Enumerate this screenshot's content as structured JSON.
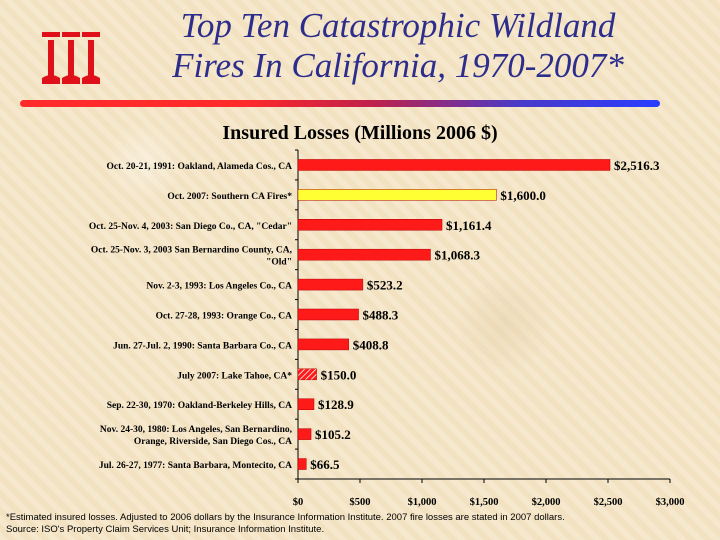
{
  "header": {
    "title_line1": "Top Ten Catastrophic Wildland",
    "title_line2": "Fires In California, 1970-2007*"
  },
  "chart_data": {
    "type": "bar",
    "orientation": "horizontal",
    "title": "Insured Losses (Millions 2006 $)",
    "categories": [
      "Oct. 20-21, 1991: Oakland, Alameda Cos., CA",
      "Oct. 2007: Southern CA Fires*",
      "Oct. 25-Nov. 4, 2003: San Diego Co., CA, \"Cedar\"",
      "Oct. 25-Nov. 3, 2003 San Bernardino County, CA, \"Old\"",
      "Nov. 2-3, 1993: Los Angeles Co., CA",
      "Oct. 27-28, 1993: Orange Co., CA",
      "Jun. 27-Jul. 2, 1990: Santa Barbara Co., CA",
      "July 2007: Lake Tahoe, CA*",
      "Sep. 22-30, 1970: Oakland-Berkeley Hills, CA",
      "Nov. 24-30, 1980: Los Angeles, San Bernardino, Orange, Riverside, San Diego Cos., CA",
      "Jul. 26-27, 1977: Santa Barbara, Montecito, CA"
    ],
    "values": [
      2516.3,
      1600.0,
      1161.4,
      1068.3,
      523.2,
      488.3,
      408.8,
      150.0,
      128.9,
      105.2,
      66.5
    ],
    "value_labels": [
      "$2,516.3",
      "$1,600.0",
      "$1,161.4",
      "$1,068.3",
      "$523.2",
      "$488.3",
      "$408.8",
      "$150.0",
      "$128.9",
      "$105.2",
      "$66.5"
    ],
    "bar_styles": [
      "solid-red",
      "solid-yellow",
      "solid-red",
      "solid-red",
      "solid-red",
      "solid-red",
      "solid-red",
      "hatched-red",
      "solid-red",
      "solid-red",
      "solid-red"
    ],
    "xlim": [
      0,
      3000
    ],
    "xticks": [
      0,
      500,
      1000,
      1500,
      2000,
      2500,
      3000
    ],
    "xtick_labels": [
      "$0",
      "$500",
      "$1,000",
      "$1,500",
      "$2,000",
      "$2,500",
      "$3,000"
    ],
    "grid": false,
    "colors": {
      "red": "#ff1a1a",
      "yellow": "#ffff33",
      "hatch": "#ffffff"
    }
  },
  "footnote": {
    "line1": "*Estimated insured losses. Adjusted to 2006 dollars by the Insurance Information Institute. 2007 fire losses are stated in 2007 dollars.",
    "line2": "Source: ISO's Property Claim Services Unit; Insurance Information Institute."
  },
  "logo": {
    "icon": "iii-logo-icon",
    "color": "#e0101a"
  }
}
